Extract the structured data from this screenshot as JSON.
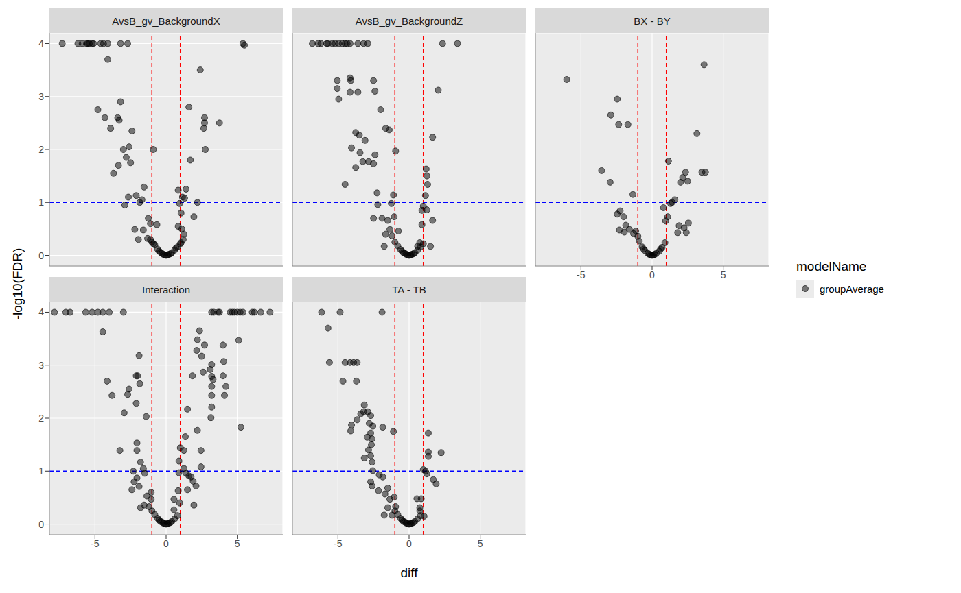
{
  "chart_data": {
    "type": "scatter",
    "xlabel": "diff",
    "ylabel": "-log10(FDR)",
    "xlim": [
      -8.2,
      8.2
    ],
    "ylim": [
      -0.2,
      4.2
    ],
    "xticks": [
      -5,
      0,
      5
    ],
    "yticks": [
      0,
      1,
      2,
      3,
      4
    ],
    "grid": true,
    "legend": "right",
    "legend_title": "modelName",
    "series": [
      {
        "name": "groupAverage",
        "color": "#000000",
        "marker": "circle"
      }
    ],
    "reference_lines": [
      {
        "axis": "x",
        "value": -1,
        "color": "#ff0000",
        "line_style": "dashed"
      },
      {
        "axis": "x",
        "value": 1,
        "color": "#ff0000",
        "line_style": "dashed"
      },
      {
        "axis": "y",
        "value": 1,
        "color": "#0000ff",
        "line_style": "dashed"
      }
    ],
    "panels": [
      {
        "title": "AvsB_gv_BackgroundX",
        "x": [
          -7.3,
          -6.2,
          -5.9,
          -5.6,
          -5.5,
          -5.4,
          -5.2,
          -5.1,
          -4.6,
          -4.4,
          -4.1,
          -3.2,
          -2.7,
          5.4,
          5.5,
          -4.1,
          2.4,
          -3.2,
          -4.8,
          -4.3,
          -3.4,
          -3.3,
          -3.9,
          -2.4,
          1.6,
          2.7,
          2.7,
          2.65,
          3.75,
          2.75,
          -3.0,
          -2.6,
          -0.9,
          -2.8,
          -2.5,
          -3.35,
          -3.7,
          1.7,
          -2.65,
          -2.1,
          -1.55,
          -1.85,
          -1.7,
          -2.9,
          1.4,
          0.85,
          1.15,
          1.3,
          0.95,
          2.2,
          1.95,
          1.05,
          -1.25,
          -1.1,
          -0.65,
          -2.2,
          -1.6,
          -1.95,
          -1.1,
          1.1,
          1.25,
          0.85,
          1.05,
          -1.0,
          -0.8,
          -0.6,
          -0.4,
          -0.2,
          0.0,
          0.2,
          0.4,
          0.6,
          0.8,
          1.0,
          -1.3,
          -0.5,
          0.3,
          0.7,
          -0.1,
          0.1,
          1.2,
          -0.9,
          -0.3
        ],
        "values": [
          4.0,
          4.0,
          4.0,
          4.0,
          4.0,
          4.0,
          4.0,
          4.0,
          4.0,
          4.0,
          4.0,
          4.0,
          4.0,
          4.0,
          3.97,
          3.7,
          3.5,
          2.9,
          2.75,
          2.6,
          2.6,
          2.55,
          2.4,
          2.35,
          2.8,
          2.6,
          2.5,
          2.4,
          2.5,
          2.0,
          2.0,
          2.05,
          2.0,
          1.85,
          1.75,
          1.7,
          1.55,
          1.8,
          1.1,
          1.13,
          1.29,
          1.0,
          1.05,
          0.95,
          1.25,
          1.23,
          1.1,
          1.08,
          0.98,
          1.0,
          0.73,
          0.8,
          0.7,
          0.6,
          0.58,
          0.49,
          0.48,
          0.3,
          0.3,
          0.5,
          0.4,
          0.55,
          0.24,
          0.25,
          0.2,
          0.12,
          0.06,
          0.02,
          0.0,
          0.02,
          0.05,
          0.1,
          0.16,
          0.22,
          0.32,
          0.08,
          0.03,
          0.14,
          0.01,
          0.01,
          0.3,
          0.22,
          0.04
        ]
      },
      {
        "title": "AvsB_gv_BackgroundZ",
        "x": [
          -6.8,
          -6.4,
          -6.2,
          -5.8,
          -5.7,
          -5.4,
          -5.2,
          -4.95,
          -4.7,
          -4.5,
          -4.35,
          -4.15,
          -3.6,
          -3.2,
          -2.9,
          2.35,
          3.4,
          2.05,
          -5.05,
          -4.15,
          -4.1,
          -4.15,
          -3.6,
          -5.05,
          -4.95,
          -2.5,
          -2.4,
          -2.0,
          -3.75,
          -3.5,
          -3.1,
          -1.65,
          -1.4,
          1.65,
          -4.05,
          -3.45,
          -0.95,
          -3.75,
          -3.25,
          -2.85,
          -2.5,
          -2.4,
          1.2,
          1.3,
          1.25,
          1.15,
          -4.5,
          -2.25,
          -1.1,
          -2.2,
          -1.25,
          1.0,
          1.25,
          -2.5,
          -1.9,
          -1.5,
          -1.05,
          0.9,
          1.65,
          0.9,
          -1.65,
          -1.35,
          -0.75,
          -1.75,
          0.75,
          0.6,
          1.5,
          -1.2,
          -1.0,
          -0.8,
          -0.6,
          -0.4,
          -0.2,
          0.0,
          0.2,
          0.4,
          0.6,
          0.8,
          1.0,
          -0.5,
          0.3,
          -0.1,
          0.1,
          -0.3
        ],
        "values": [
          4.0,
          4.0,
          4.0,
          4.0,
          4.0,
          4.0,
          4.0,
          4.0,
          4.0,
          4.0,
          4.0,
          4.0,
          4.0,
          4.0,
          4.0,
          4.0,
          4.0,
          3.12,
          3.3,
          3.35,
          3.3,
          3.08,
          3.08,
          3.15,
          2.95,
          3.3,
          3.1,
          2.75,
          2.32,
          2.27,
          2.17,
          2.4,
          2.37,
          2.23,
          2.03,
          1.94,
          1.97,
          1.66,
          1.77,
          1.77,
          1.73,
          1.9,
          1.63,
          1.34,
          1.5,
          1.13,
          1.34,
          1.18,
          1.14,
          0.96,
          0.98,
          0.93,
          0.86,
          0.7,
          0.7,
          0.66,
          0.73,
          0.58,
          0.66,
          0.85,
          0.4,
          0.49,
          0.46,
          0.17,
          0.24,
          0.17,
          0.17,
          0.37,
          0.25,
          0.18,
          0.11,
          0.05,
          0.02,
          0.0,
          0.02,
          0.05,
          0.1,
          0.16,
          0.22,
          0.08,
          0.03,
          0.01,
          0.01,
          0.04
        ]
      },
      {
        "title": "BX - BY",
        "x": [
          -6.0,
          -2.45,
          -2.9,
          -2.35,
          -1.7,
          -3.55,
          -2.95,
          -1.35,
          -2.25,
          -2.45,
          3.65,
          3.15,
          1.15,
          3.5,
          3.75,
          2.35,
          2.15,
          2.0,
          2.5,
          1.6,
          1.4,
          1.3,
          0.8,
          1.1,
          0.95,
          2.55,
          2.25,
          2.4,
          1.9,
          1.8,
          -2.0,
          -1.85,
          -1.95,
          -1.6,
          -2.3,
          -1.3,
          -1.15,
          -1.0,
          -0.9,
          -0.7,
          -0.5,
          -0.3,
          -0.1,
          0.0,
          0.1,
          0.3,
          0.5,
          0.7,
          0.9,
          -0.6,
          0.6,
          -0.2,
          0.2
        ],
        "values": [
          3.32,
          2.95,
          2.65,
          2.47,
          2.47,
          1.6,
          1.38,
          1.15,
          0.84,
          0.78,
          3.6,
          2.3,
          1.78,
          1.57,
          1.57,
          1.57,
          1.47,
          1.38,
          1.4,
          1.05,
          1.0,
          0.98,
          0.9,
          0.73,
          0.65,
          0.61,
          0.52,
          0.43,
          0.56,
          0.43,
          0.73,
          0.57,
          0.44,
          0.49,
          0.48,
          0.41,
          0.46,
          0.36,
          0.27,
          0.16,
          0.09,
          0.04,
          0.01,
          0.0,
          0.01,
          0.04,
          0.08,
          0.15,
          0.24,
          0.12,
          0.12,
          0.02,
          0.02
        ]
      },
      {
        "title": "Interaction",
        "x": [
          -7.85,
          -7.05,
          -6.75,
          -5.65,
          -5.2,
          -4.8,
          -4.45,
          -4.0,
          -3.0,
          3.2,
          3.35,
          3.65,
          3.75,
          4.5,
          4.65,
          4.8,
          5.0,
          5.2,
          5.4,
          6.05,
          6.2,
          6.65,
          7.3,
          -4.45,
          -4.15,
          -3.8,
          -3.25,
          -2.6,
          -2.7,
          -2.95,
          -2.1,
          -2.0,
          -1.9,
          -2.1,
          -1.85,
          -1.4,
          -2.05,
          -2.05,
          -2.3,
          -1.8,
          -1.6,
          -1.5,
          -2.25,
          -2.05,
          -1.9,
          -2.4,
          -1.8,
          -1.55,
          -1.35,
          -1.2,
          -1.05,
          -1.05,
          2.35,
          2.2,
          2.7,
          2.15,
          2.5,
          3.2,
          3.1,
          3.2,
          3.3,
          1.85,
          2.6,
          4.0,
          4.05,
          5.1,
          5.25,
          4.0,
          3.2,
          3.2,
          4.1,
          3.2,
          4.2,
          1.5,
          3.15,
          2.2,
          1.35,
          2.45,
          1.0,
          1.25,
          0.9,
          1.25,
          2.45,
          1.4,
          1.6,
          1.75,
          0.9,
          1.9,
          2.1,
          1.5,
          0.85,
          0.55,
          0.95,
          1.95,
          0.55,
          -1.0,
          -0.8,
          -0.6,
          -0.4,
          -0.2,
          0.0,
          0.2,
          0.4,
          0.6,
          0.8,
          -0.5,
          0.3,
          -0.1,
          0.1,
          -0.3
        ],
        "values": [
          4.0,
          4.0,
          4.0,
          4.0,
          4.0,
          4.0,
          4.0,
          4.0,
          4.0,
          4.0,
          4.0,
          4.0,
          4.0,
          4.0,
          4.0,
          4.0,
          4.0,
          4.0,
          4.0,
          4.0,
          4.0,
          4.0,
          4.0,
          3.63,
          2.7,
          2.43,
          1.39,
          2.55,
          2.45,
          2.1,
          2.8,
          2.8,
          3.18,
          2.28,
          2.65,
          2.03,
          1.53,
          1.39,
          1.0,
          1.17,
          1.05,
          0.96,
          0.8,
          0.87,
          0.71,
          0.65,
          0.31,
          0.36,
          0.53,
          0.33,
          0.6,
          0.47,
          3.65,
          3.48,
          3.38,
          3.28,
          3.17,
          3.01,
          2.92,
          2.79,
          2.73,
          2.8,
          2.87,
          3.38,
          3.07,
          3.47,
          1.83,
          2.8,
          2.6,
          2.43,
          2.43,
          2.21,
          2.6,
          2.17,
          2.01,
          1.77,
          1.65,
          1.39,
          1.44,
          1.39,
          1.19,
          1.05,
          1.08,
          0.96,
          0.91,
          0.89,
          0.97,
          0.81,
          0.72,
          0.65,
          0.63,
          0.47,
          0.4,
          0.36,
          0.27,
          0.25,
          0.18,
          0.11,
          0.05,
          0.02,
          0.0,
          0.02,
          0.05,
          0.1,
          0.16,
          0.08,
          0.03,
          0.01,
          0.01,
          0.04
        ]
      },
      {
        "title": "TA - TB",
        "x": [
          -6.15,
          -4.85,
          -1.9,
          -5.7,
          -5.6,
          -4.5,
          -4.15,
          -3.9,
          -3.65,
          -4.65,
          -3.7,
          -3.15,
          -3.2,
          -2.9,
          -3.4,
          -2.7,
          -3.65,
          -4.05,
          -2.8,
          -1.85,
          -2.55,
          -2.7,
          -4.1,
          -2.95,
          -2.6,
          -2.65,
          -2.85,
          -2.7,
          -2.6,
          -3.15,
          -1.1,
          -2.55,
          -2.7,
          -2.6,
          -2.1,
          -1.85,
          -2.15,
          -1.7,
          -1.5,
          -1.35,
          -1.05,
          -0.95,
          -1.5,
          -1.2,
          -1.75,
          1.35,
          1.35,
          1.35,
          2.25,
          1.15,
          1.25,
          1.0,
          1.7,
          1.9,
          0.85,
          0.55,
          0.75,
          0.75,
          1.05,
          -1.0,
          -0.8,
          -0.6,
          -0.4,
          -0.2,
          0.0,
          0.2,
          0.4,
          0.6,
          0.8,
          -0.5,
          0.3,
          -0.1,
          0.1,
          -0.3
        ],
        "values": [
          4.0,
          4.0,
          4.0,
          3.7,
          3.05,
          3.05,
          3.05,
          3.05,
          3.05,
          2.7,
          2.7,
          2.25,
          2.12,
          2.12,
          2.08,
          2.05,
          1.97,
          1.87,
          1.9,
          1.83,
          1.85,
          1.72,
          1.76,
          1.64,
          1.61,
          1.5,
          1.4,
          1.29,
          1.17,
          1.25,
          1.75,
          1.01,
          0.8,
          0.72,
          0.93,
          0.89,
          0.63,
          0.57,
          0.68,
          0.47,
          0.51,
          0.33,
          0.31,
          0.17,
          0.17,
          1.72,
          1.36,
          1.28,
          1.35,
          1.0,
          0.95,
          1.03,
          0.84,
          0.76,
          0.48,
          0.48,
          0.31,
          0.25,
          0.15,
          0.25,
          0.18,
          0.11,
          0.05,
          0.02,
          0.0,
          0.02,
          0.05,
          0.1,
          0.16,
          0.08,
          0.03,
          0.01,
          0.01,
          0.04
        ]
      }
    ]
  }
}
